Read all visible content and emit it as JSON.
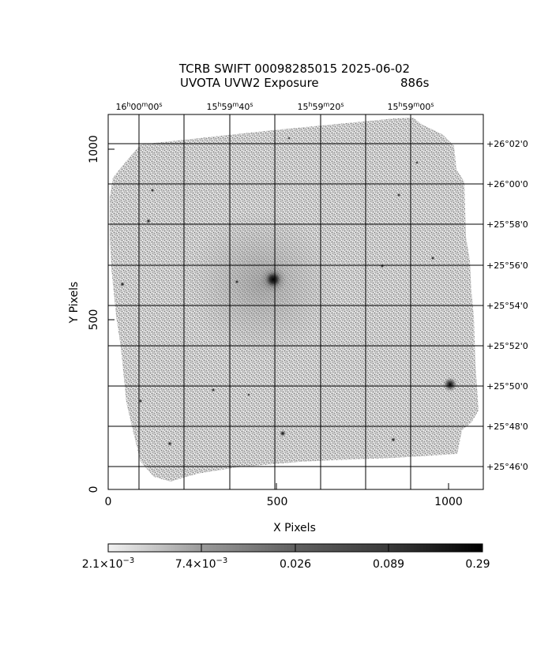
{
  "header": {
    "title_line1": "TCRB SWIFT 00098285015 2025-06-02",
    "title_line2_left": "UVOTA UVW2 Exposure",
    "title_line2_right": "886s"
  },
  "axes": {
    "xlabel": "X Pixels",
    "ylabel": "Y Pixels",
    "x_ticks": [
      "0",
      "500",
      "1000"
    ],
    "y_ticks": [
      "0",
      "500",
      "1000"
    ],
    "ra_ticks": [
      {
        "h": "16",
        "m": "00",
        "s": "00"
      },
      {
        "h": "15",
        "m": "59",
        "s": "40"
      },
      {
        "h": "15",
        "m": "59",
        "s": "20"
      },
      {
        "h": "15",
        "m": "59",
        "s": "00"
      }
    ],
    "dec_ticks": [
      "+26°02'0",
      "+26°00'0",
      "+25°58'0",
      "+25°56'0",
      "+25°54'0",
      "+25°52'0",
      "+25°50'0",
      "+25°48'0",
      "+25°46'0"
    ]
  },
  "colorbar": {
    "labels": [
      {
        "base": "2.1×10",
        "exp": "−3"
      },
      {
        "base": "7.4×10",
        "exp": "−3"
      },
      {
        "base": "0.026",
        "exp": ""
      },
      {
        "base": "0.089",
        "exp": ""
      },
      {
        "base": "0.29",
        "exp": ""
      }
    ]
  }
}
